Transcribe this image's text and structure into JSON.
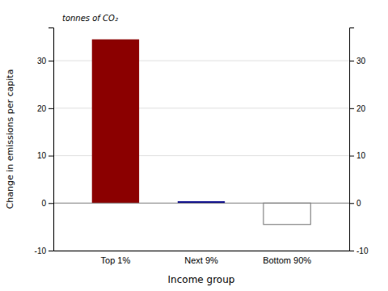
{
  "chart_data": {
    "type": "bar",
    "categories": [
      "Top 1%",
      "Next 9%",
      "Bottom 90%"
    ],
    "values": [
      34.5,
      0.4,
      -4.5
    ],
    "colors": [
      "#8B0000",
      "#00008B",
      "none"
    ],
    "xlabel": "Income group",
    "ylabel": "Change in emissions per capita",
    "annotation": "tonnes of CO₂",
    "ylim": [
      -10,
      37
    ],
    "yticks": [
      -10,
      0,
      10,
      20,
      30
    ],
    "y2lim": [
      -10,
      37
    ],
    "y2ticks": [
      -10,
      0,
      10,
      20,
      30
    ],
    "grid": true
  }
}
